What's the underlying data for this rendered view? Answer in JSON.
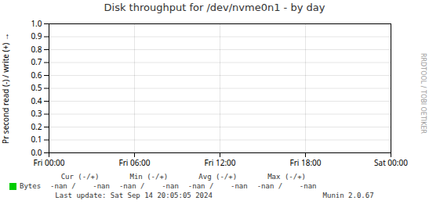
{
  "chart_data": {
    "type": "line",
    "title": "Disk throughput for /dev/nvme0n1 - by day",
    "ylabel": "Pr second read (-) / write (+)",
    "categories": [
      "Fri 00:00",
      "Fri 06:00",
      "Fri 12:00",
      "Fri 18:00",
      "Sat 00:00"
    ],
    "series": [
      {
        "name": "Bytes",
        "color": "#00cc00",
        "values": [
          null,
          null,
          null,
          null,
          null
        ]
      }
    ],
    "ylim": [
      0.0,
      1.0
    ],
    "yticks": [
      {
        "value": 0.0,
        "label": "0.0"
      },
      0.1,
      0.2,
      0.3,
      0.4,
      0.5,
      0.6,
      0.7,
      0.8,
      0.9,
      {
        "value": 1.0,
        "label": "1.0"
      }
    ],
    "grid": true,
    "legend": "bottom",
    "stats": {
      "headers": [
        "Cur (-/+)",
        "Min (-/+)",
        "Avg (-/+)",
        "Max (-/+)"
      ],
      "values": [
        "-nan /    -nan",
        "-nan /    -nan",
        "-nan /    -nan",
        "-nan /    -nan"
      ]
    },
    "annotations": [
      "Last update: Sat Sep 14 20:05:05 2024",
      "Munin 2.0.67",
      "RRDTOOL / TOBI OETIKER"
    ]
  }
}
